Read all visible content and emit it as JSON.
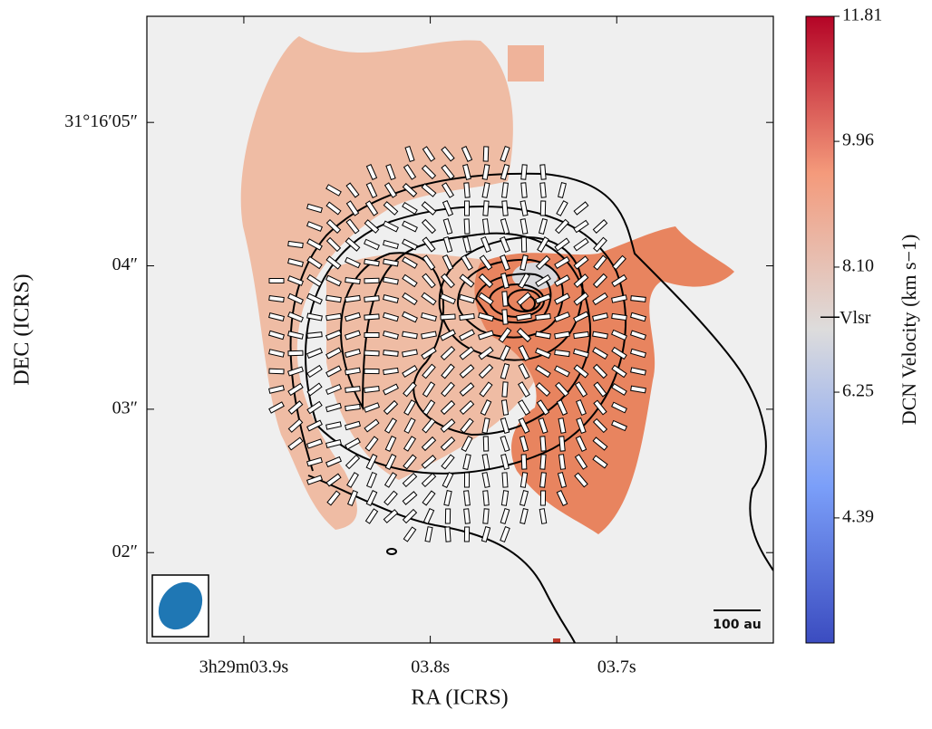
{
  "chart_data": {
    "type": "image",
    "xlabel": "RA (ICRS)",
    "ylabel": "DEC (ICRS)",
    "xlim": [
      3.952,
      3.616
    ],
    "xticks": [
      {
        "value": 3.9,
        "label": "3h29m03.9s"
      },
      {
        "value": 3.8,
        "label": "03.8s"
      },
      {
        "value": 3.7,
        "label": "03.7s"
      }
    ],
    "ylim": [
      1.37,
      5.74
    ],
    "yticks": [
      {
        "value": 5,
        "label": "31°16′05″"
      },
      {
        "value": 4,
        "label": "04″"
      },
      {
        "value": 3,
        "label": "03″"
      },
      {
        "value": 2,
        "label": "02″"
      }
    ],
    "colorbar": {
      "label": "DCN Velocity (km s−1)",
      "clim": [
        2.54,
        11.81
      ],
      "ticks": [
        4.39,
        6.25,
        {
          "value": 8.1,
          "label": "8.10"
        },
        9.96,
        11.81
      ],
      "marker": {
        "value": 7.36,
        "label": "Vlsr"
      }
    },
    "scale_bar": "100 au"
  }
}
